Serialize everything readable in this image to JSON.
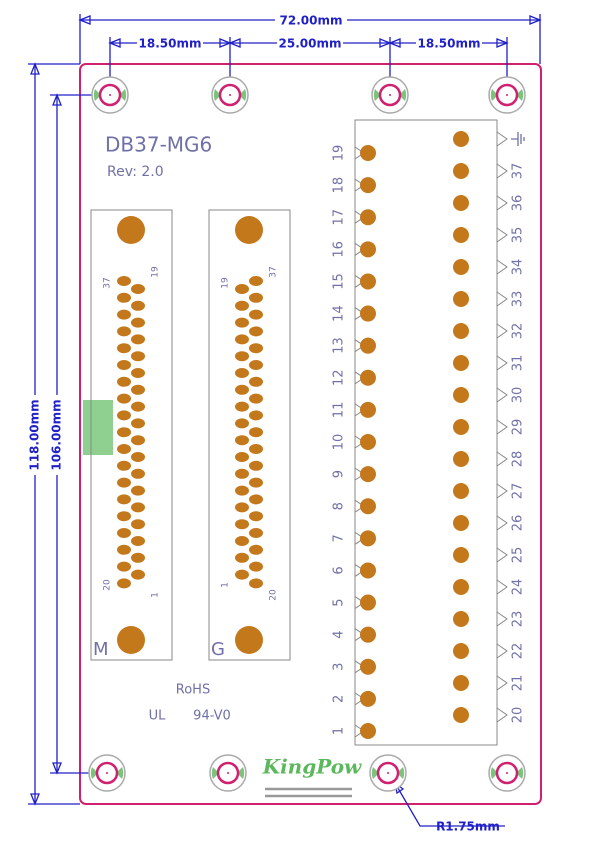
{
  "dimensions": {
    "width": "72.00mm",
    "spacing_left": "18.50mm",
    "spacing_middle": "25.00mm",
    "spacing_right": "18.50mm",
    "height": "118.00mm",
    "hole_span": "106.00mm",
    "hole_radius": "R1.75mm"
  },
  "board": {
    "title": "DB37-MG6",
    "revision": "Rev: 2.0",
    "rohs": "RoHS",
    "ul": "UL",
    "rating": "94-V0",
    "brand": "KingPow"
  },
  "connectors": [
    {
      "label": "M",
      "pins": [
        "37",
        "19",
        "20",
        "1"
      ]
    },
    {
      "label": "G",
      "pins": [
        "19",
        "37",
        "1",
        "20"
      ]
    }
  ],
  "terminals": {
    "left": [
      "19",
      "18",
      "17",
      "16",
      "15",
      "14",
      "13",
      "12",
      "11",
      "10",
      "9",
      "8",
      "7",
      "6",
      "5",
      "4",
      "3",
      "2",
      "1"
    ],
    "right": [
      "37",
      "36",
      "35",
      "34",
      "33",
      "32",
      "31",
      "30",
      "29",
      "28",
      "27",
      "26",
      "25",
      "24",
      "23",
      "22",
      "21",
      "20"
    ]
  }
}
